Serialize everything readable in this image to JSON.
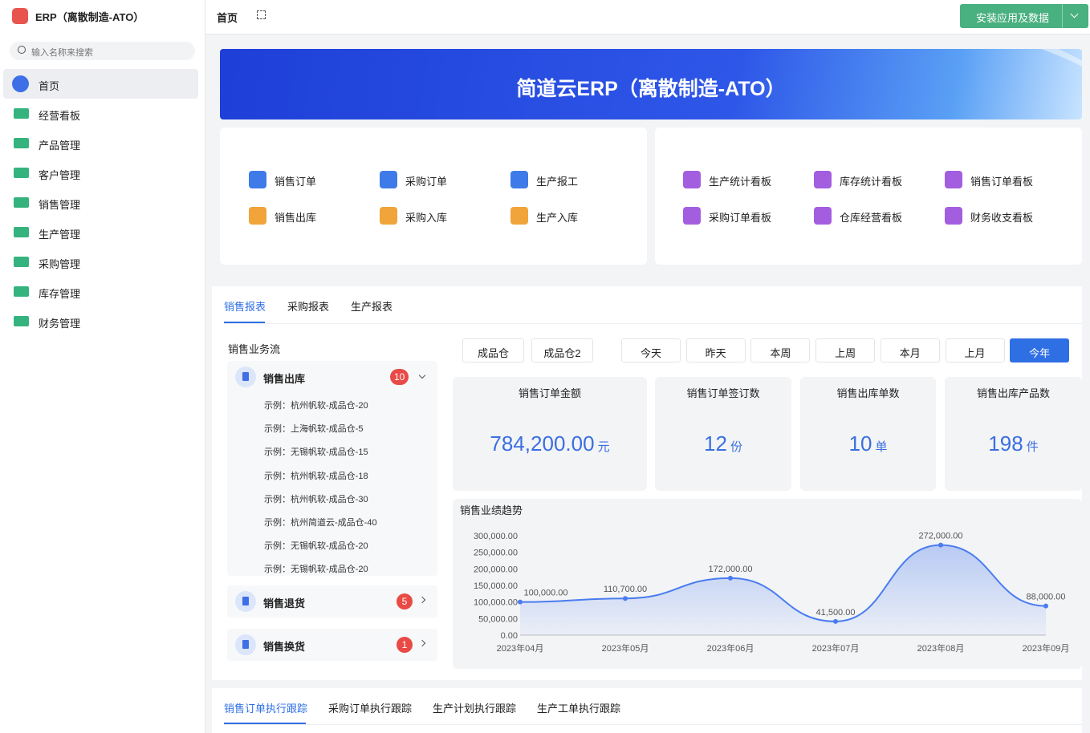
{
  "app": {
    "title": "ERP（离散制造-ATO）",
    "search_placeholder": "输入名称来搜索"
  },
  "sidebar": {
    "items": [
      "首页",
      "经营看板",
      "产品管理",
      "客户管理",
      "销售管理",
      "生产管理",
      "采购管理",
      "库存管理",
      "财务管理"
    ]
  },
  "topbar": {
    "breadcrumb": "首页",
    "install_button": "安装应用及数据"
  },
  "banner": {
    "title": "简道云ERP（离散制造-ATO）"
  },
  "shortcuts": {
    "left": [
      "销售订单",
      "采购订单",
      "生产报工",
      "销售出库",
      "采购入库",
      "生产入库"
    ],
    "right": [
      "生产统计看板",
      "库存统计看板",
      "销售订单看板",
      "采购订单看板",
      "仓库经营看板",
      "财务收支看板"
    ]
  },
  "report_tabs": [
    "销售报表",
    "采购报表",
    "生产报表"
  ],
  "flow": {
    "title": "销售业务流",
    "groups": [
      {
        "name": "销售出库",
        "count": 10,
        "items": [
          "示例：杭州帆软-成品仓-20",
          "示例：上海帆软-成品仓-5",
          "示例：无锡帆软-成品仓-15",
          "示例：杭州帆软-成品仓-18",
          "示例：杭州帆软-成品仓-30",
          "示例：杭州简道云-成品仓-40",
          "示例：无锡帆软-成品仓-20",
          "示例：无锡帆软-成品仓-20"
        ]
      },
      {
        "name": "销售退货",
        "count": 5
      },
      {
        "name": "销售换货",
        "count": 1
      }
    ]
  },
  "filters": {
    "warehouses": [
      "成品仓",
      "成品仓2"
    ],
    "periods": [
      "今天",
      "昨天",
      "本周",
      "上周",
      "本月",
      "上月",
      "今年"
    ],
    "selected_period": "今年"
  },
  "kpis": [
    {
      "label": "销售订单金额",
      "value": "784,200.00",
      "unit": "元"
    },
    {
      "label": "销售订单签订数",
      "value": 12,
      "unit": "份"
    },
    {
      "label": "销售出库单数",
      "value": 10,
      "unit": "单"
    },
    {
      "label": "销售出库产品数",
      "value": 198,
      "unit": "件"
    }
  ],
  "chart_data": {
    "type": "line",
    "title": "销售业绩趋势",
    "x": [
      "2023年04月",
      "2023年05月",
      "2023年06月",
      "2023年07月",
      "2023年08月",
      "2023年09月"
    ],
    "series": [
      {
        "color": "#4a7cf0",
        "values": [
          100000,
          110700,
          172000,
          41500,
          272000,
          88000
        ],
        "value_labels": [
          "100,000.00",
          "110,700.00",
          "172,000.00",
          "41,500.00",
          "272,000.00",
          "88,000.00"
        ]
      }
    ],
    "ylim": [
      0,
      300000
    ],
    "yticks": [
      {
        "value": 0,
        "label": "0.00"
      },
      {
        "value": 50000,
        "label": "50,000.00"
      },
      {
        "value": 100000,
        "label": "100,000.00"
      },
      {
        "value": 150000,
        "label": "150,000.00"
      },
      {
        "value": 200000,
        "label": "200,000.00"
      },
      {
        "value": 250000,
        "label": "250,000.00"
      },
      {
        "value": 300000,
        "label": "300,000.00"
      }
    ],
    "area": true
  },
  "tracking_tabs": [
    "销售订单执行跟踪",
    "采购订单执行跟踪",
    "生产计划执行跟踪",
    "生产工单执行跟踪"
  ]
}
